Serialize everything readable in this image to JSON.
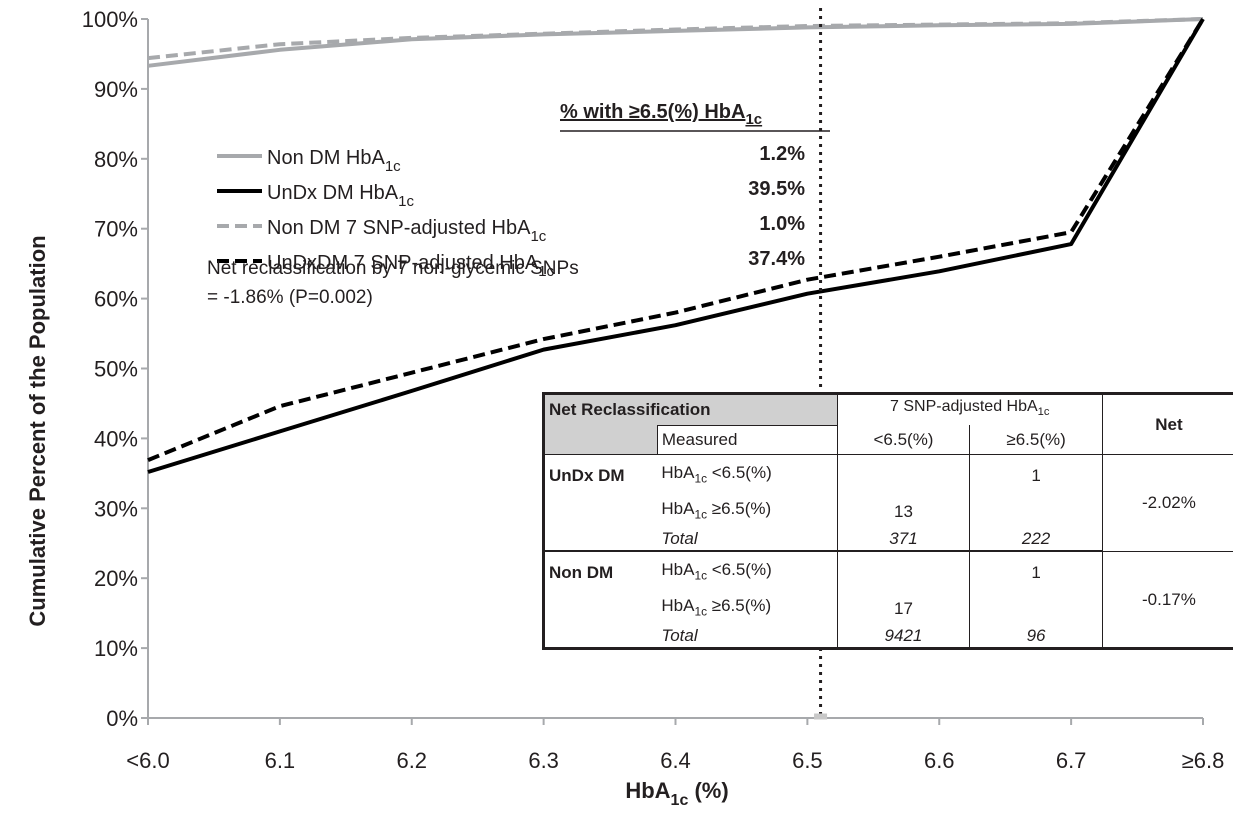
{
  "chart_data": {
    "type": "line",
    "xlabel": "HbA",
    "xlabel_sub": "1c",
    "xlabel_tail": " (%)",
    "ylabel": "Cumulative Percent of the Population",
    "categories": [
      "<6.0",
      "6.1",
      "6.2",
      "6.3",
      "6.4",
      "6.5",
      "6.6",
      "6.7",
      "≥6.8"
    ],
    "yticks": [
      "0%",
      "10%",
      "20%",
      "30%",
      "40%",
      "50%",
      "60%",
      "70%",
      "80%",
      "90%",
      "100%"
    ],
    "ylim": [
      0,
      100
    ],
    "threshold_x": 6.51,
    "legend_header": "% with ≥6.5(%) HbA",
    "legend_header_sub": "1c",
    "series": [
      {
        "name": "Non DM HbA",
        "name_sub": "1c",
        "pct": "1.2%",
        "color": "#a7a9ac",
        "dash": false,
        "values": [
          93.3,
          95.6,
          97.1,
          97.8,
          98.3,
          98.8,
          99.1,
          99.3,
          100
        ]
      },
      {
        "name": "UnDx DM HbA",
        "name_sub": "1c",
        "pct": "39.5%",
        "color": "#000000",
        "dash": false,
        "values": [
          35.2,
          41.0,
          46.8,
          52.7,
          56.2,
          60.7,
          63.9,
          67.8,
          100
        ]
      },
      {
        "name": "Non DM 7 SNP-adjusted HbA",
        "name_sub": "1c",
        "pct": "1.0%",
        "color": "#a7a9ac",
        "dash": true,
        "values": [
          94.4,
          96.4,
          97.3,
          97.9,
          98.5,
          99.0,
          99.2,
          99.4,
          100
        ]
      },
      {
        "name": "UnDxDM 7 SNP-adjusted HbA",
        "name_sub": "1c",
        "pct": "37.4%",
        "color": "#000000",
        "dash": true,
        "values": [
          36.9,
          44.6,
          49.4,
          54.2,
          58.0,
          62.7,
          66.0,
          69.5,
          100
        ]
      }
    ],
    "note_line1": "Net reclassification by 7 non-glycemic SNPs",
    "note_line2": "= -1.86% (P=0.002)"
  },
  "table": {
    "title": "Net Reclassification",
    "group_header": "7 SNP-adjusted HbA",
    "group_header_sub": "1c",
    "measured": "Measured",
    "col_lt": "<6.5(%)",
    "col_ge": "≥6.5(%)",
    "col_net": "Net",
    "row_prefix": "HbA",
    "row_sub": "1c",
    "row_lt": " <6.5(%)",
    "row_ge": " ≥6.5(%)",
    "total": "Total",
    "undx": {
      "label": "UnDx DM",
      "lt_to_ge": "1",
      "ge_to_lt": "13",
      "total_lt": "371",
      "total_ge": "222",
      "net": "-2.02%"
    },
    "nondm": {
      "label": "Non DM",
      "lt_to_ge": "1",
      "ge_to_lt": "17",
      "total_lt": "9421",
      "total_ge": "96",
      "net": "-0.17%"
    }
  }
}
